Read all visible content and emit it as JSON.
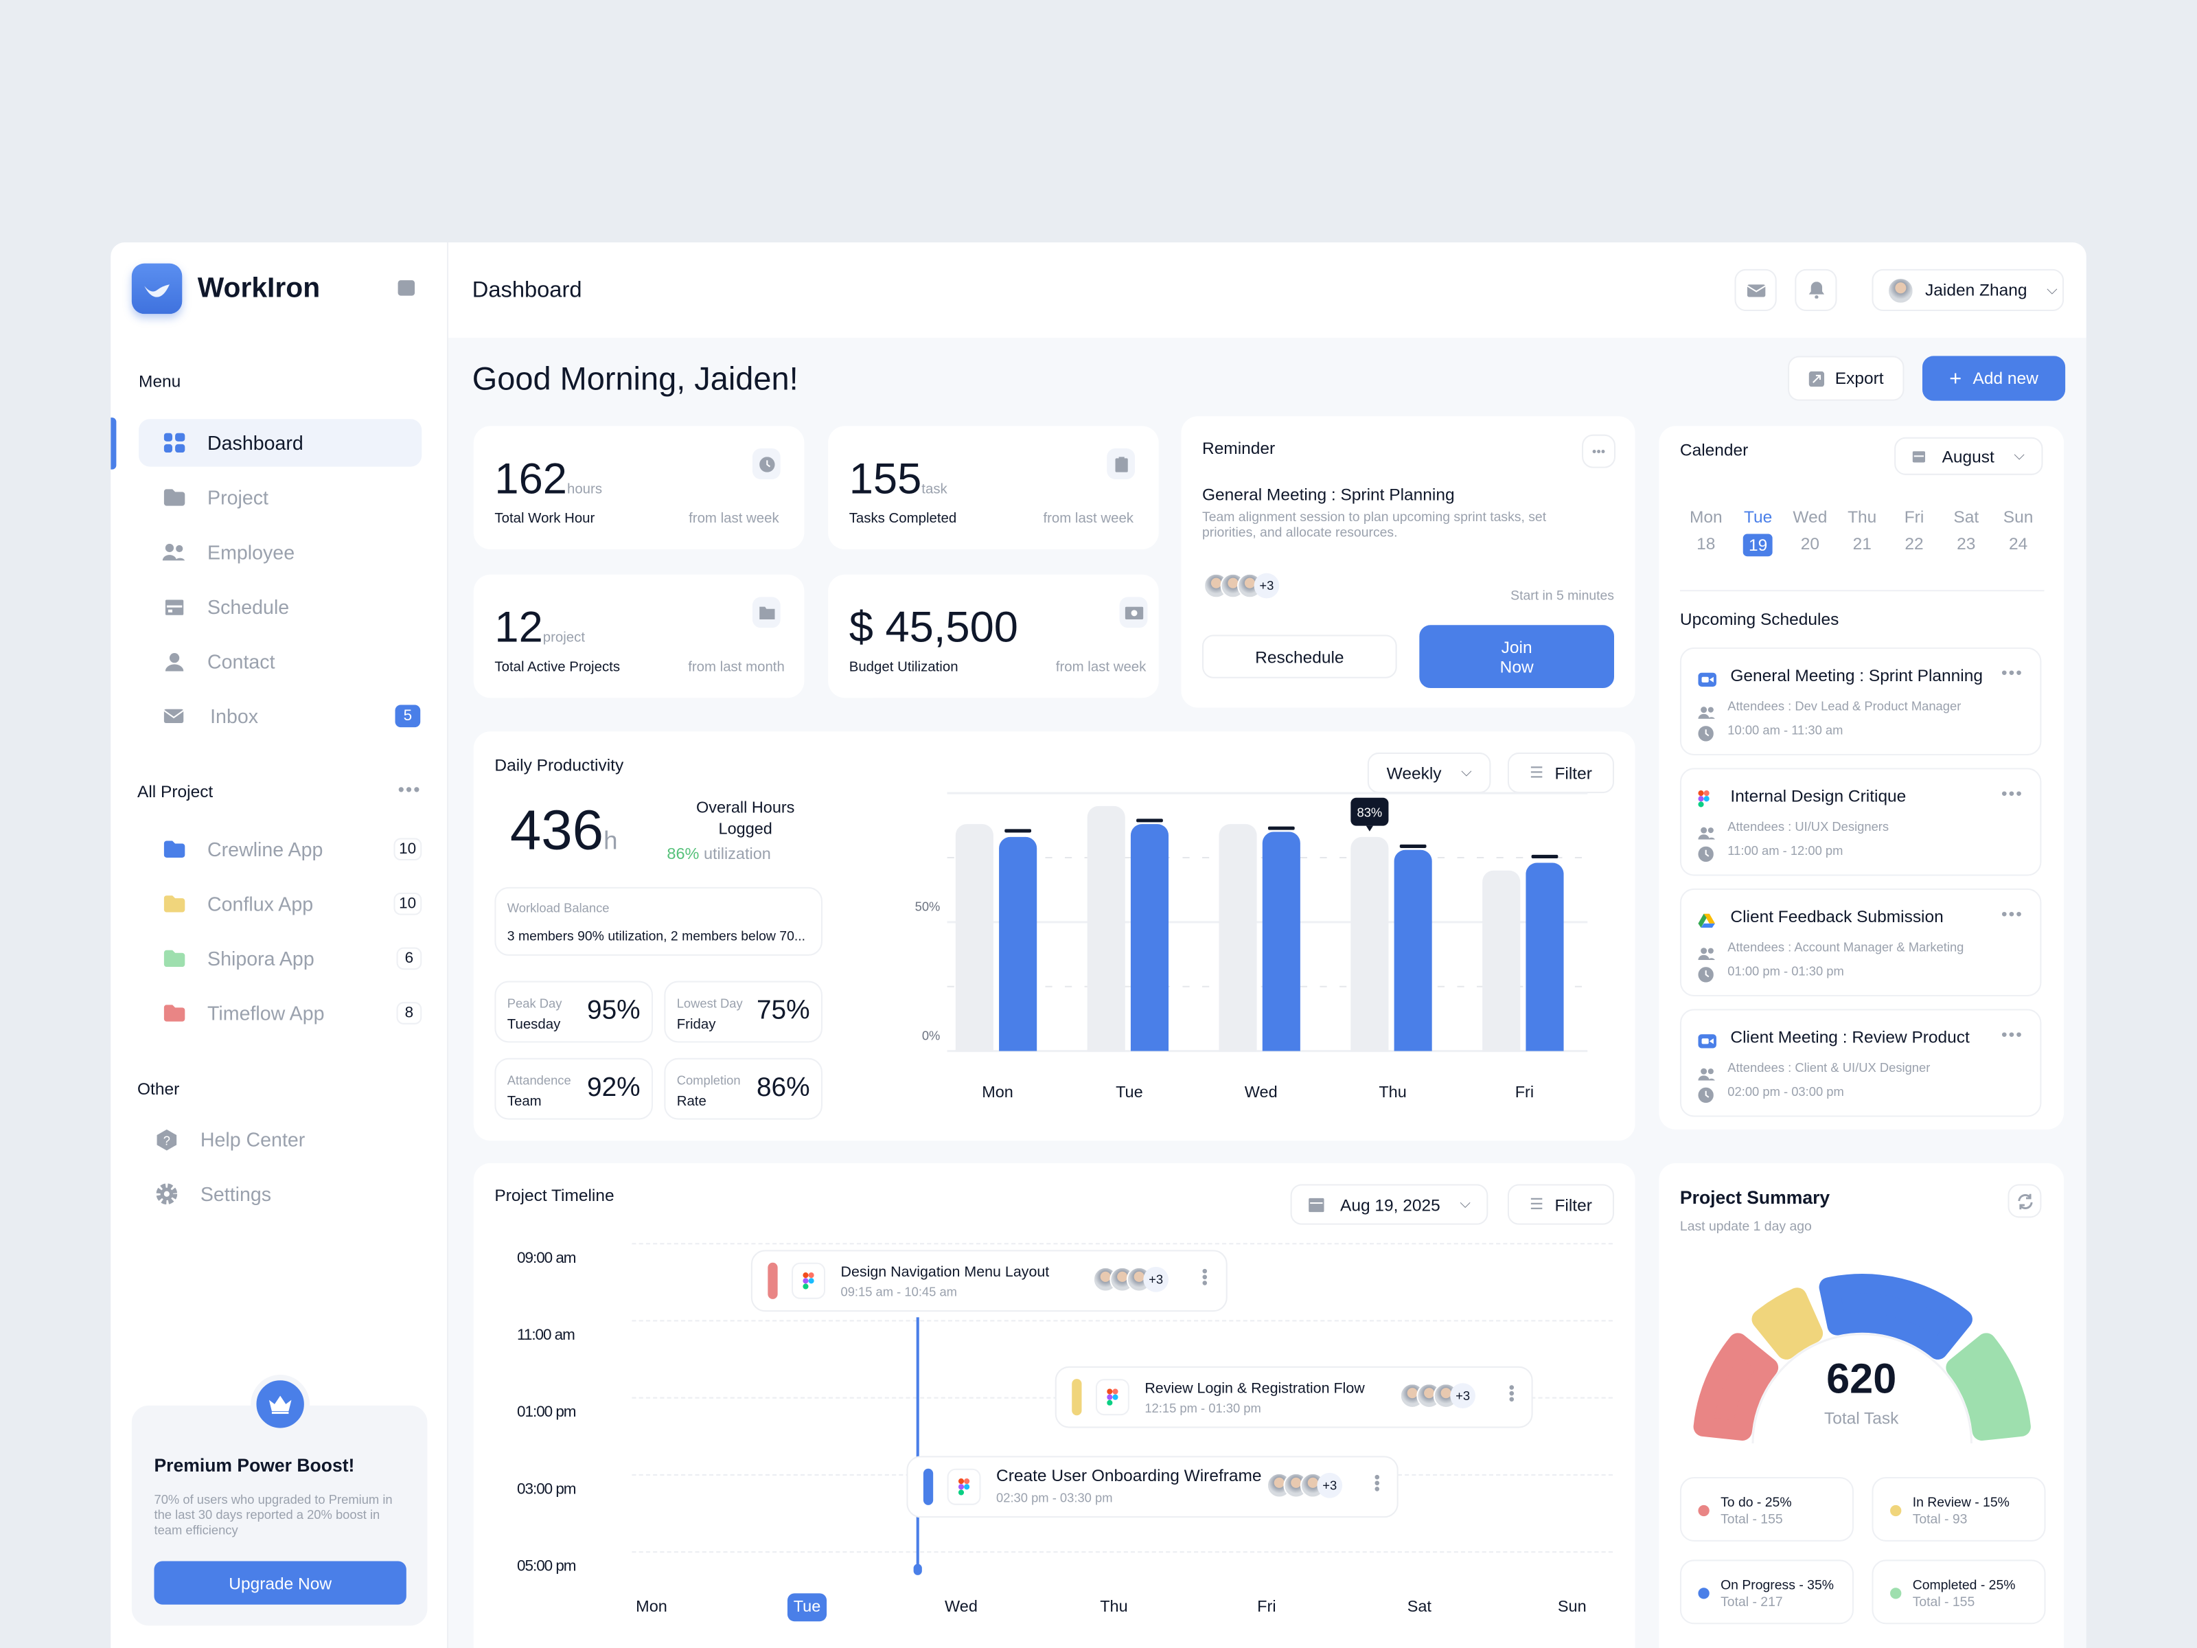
{
  "app": {
    "name": "WorkIron",
    "header_title": "Dashboard",
    "user_name": "Jaiden Zhang"
  },
  "sidebar": {
    "menu_label": "Menu",
    "items": [
      {
        "label": "Dashboard",
        "icon": "grid-icon",
        "active": true
      },
      {
        "label": "Project",
        "icon": "folder-icon"
      },
      {
        "label": "Employee",
        "icon": "users-icon"
      },
      {
        "label": "Schedule",
        "icon": "calendar-icon"
      },
      {
        "label": "Contact",
        "icon": "user-icon"
      },
      {
        "label": "Inbox",
        "icon": "mail-icon",
        "badge": "5"
      }
    ],
    "projects_label": "All Project",
    "projects": [
      {
        "label": "Crewline App",
        "count": "10",
        "color": "#4a7fe8"
      },
      {
        "label": "Conflux App",
        "count": "10",
        "color": "#f0d57c"
      },
      {
        "label": "Shipora App",
        "count": "6",
        "color": "#9edfae"
      },
      {
        "label": "Timeflow App",
        "count": "8",
        "color": "#e98585"
      }
    ],
    "other_label": "Other",
    "other": [
      {
        "label": "Help Center",
        "icon": "help-icon"
      },
      {
        "label": "Settings",
        "icon": "gear-icon"
      }
    ],
    "promo": {
      "title": "Premium Power Boost!",
      "text": "70% of users who upgraded to Premium in the last 30 days reported a 20% boost in team efficiency",
      "button": "Upgrade Now"
    }
  },
  "greeting": "Good Morning, Jaiden!",
  "actions": {
    "export": "Export",
    "add_new": "Add new"
  },
  "stats": [
    {
      "value": "162",
      "unit": "hours",
      "label": "Total Work Hour",
      "sub": "from last week",
      "icon": "clock-icon"
    },
    {
      "value": "155",
      "unit": "task",
      "label": "Tasks Completed",
      "sub": "from last week",
      "icon": "clipboard-icon"
    },
    {
      "value": "12",
      "unit": "project",
      "label": "Total Active Projects",
      "sub": "from last month",
      "icon": "folder-icon"
    },
    {
      "value": "$ 45,500",
      "unit": "",
      "label": "Budget Utilization",
      "sub": "from last week",
      "icon": "money-icon"
    }
  ],
  "reminder": {
    "title": "Reminder",
    "event": "General Meeting : Sprint Planning",
    "desc": "Team alignment session to plan upcoming sprint tasks, set priorities, and allocate resources.",
    "more": "+3",
    "start": "Start in 5 minutes",
    "reschedule": "Reschedule",
    "join": "Join Now"
  },
  "calendar": {
    "title": "Calender",
    "month": "August",
    "days": [
      {
        "d": "Mon",
        "n": "18"
      },
      {
        "d": "Tue",
        "n": "19",
        "active": true
      },
      {
        "d": "Wed",
        "n": "20"
      },
      {
        "d": "Thu",
        "n": "21"
      },
      {
        "d": "Fri",
        "n": "22"
      },
      {
        "d": "Sat",
        "n": "23"
      },
      {
        "d": "Sun",
        "n": "24"
      }
    ],
    "upcoming_title": "Upcoming Schedules",
    "schedules": [
      {
        "title": "General Meeting : Sprint Planning",
        "attendees": "Attendees : Dev Lead & Product Manager",
        "time": "10:00 am - 11:30 am",
        "icon": "zoom-icon"
      },
      {
        "title": "Internal Design Critique",
        "attendees": "Attendees : UI/UX Designers",
        "time": "11:00 am - 12:00 pm",
        "icon": "figma-icon"
      },
      {
        "title": "Client Feedback Submission",
        "attendees": "Attendees : Account Manager & Marketing",
        "time": "01:00 pm - 01:30 pm",
        "icon": "drive-icon"
      },
      {
        "title": "Client Meeting : Review Product",
        "attendees": "Attendees : Client & UI/UX Designer",
        "time": "02:00 pm - 03:00 pm",
        "icon": "zoom-icon"
      }
    ]
  },
  "productivity": {
    "title": "Daily Productivity",
    "period": "Weekly",
    "filter": "Filter",
    "total": "436",
    "total_unit": "h",
    "overall_label": "Overall Hours Logged",
    "util_pct": "86%",
    "util_label": "utilization",
    "workload_label": "Workload Balance",
    "workload_text": "3 members 90% utilization, 2 members below 70...",
    "metrics": [
      {
        "a": "Peak Day",
        "b": "Tuesday",
        "v": "95%"
      },
      {
        "a": "Lowest Day",
        "b": "Friday",
        "v": "75%"
      },
      {
        "a": "Attandence",
        "b": "Team",
        "v": "92%"
      },
      {
        "a": "Completion",
        "b": "Rate",
        "v": "86%"
      }
    ]
  },
  "chart_data": {
    "type": "bar",
    "categories": [
      "Mon",
      "Tue",
      "Wed",
      "Thu",
      "Fri"
    ],
    "ylim": [
      0,
      100
    ],
    "yticks": [
      "0%",
      "50%",
      "100%"
    ],
    "grid": true,
    "series": [
      {
        "values": [
          88,
          95,
          88,
          83,
          70
        ],
        "color": "#eceef2"
      },
      {
        "values": [
          83,
          88,
          85,
          78,
          73
        ],
        "color": "#4a7fe8"
      }
    ],
    "markers": [
      85,
      89,
      86,
      79,
      75
    ],
    "tooltip": {
      "category": "Thu",
      "text": "83%"
    }
  },
  "timeline": {
    "title": "Project Timeline",
    "date": "Aug 19, 2025",
    "filter": "Filter",
    "times": [
      "09:00 am",
      "11:00 am",
      "01:00 pm",
      "03:00 pm",
      "05:00 pm"
    ],
    "days": [
      "Mon",
      "Tue",
      "Wed",
      "Thu",
      "Fri",
      "Sat",
      "Sun"
    ],
    "active_day": "Tue",
    "events": [
      {
        "name": "Design Navigation Menu Layout",
        "time": "09:15 am - 10:45 am",
        "color": "#e98585",
        "more": "+3"
      },
      {
        "name": "Review Login & Registration Flow",
        "time": "12:15 pm - 01:30 pm",
        "color": "#f0d57c",
        "more": "+3"
      },
      {
        "name": "Create User Onboarding Wireframe",
        "time": "02:30 pm - 03:30 pm",
        "color": "#4a7fe8",
        "more": "+3"
      }
    ]
  },
  "summary": {
    "title": "Project Summary",
    "updated": "Last update 1 day ago",
    "total": "620",
    "total_label": "Total Task",
    "segments": [
      {
        "label": "To do - 25%",
        "total": "Total - 155",
        "pct": 25,
        "color": "#e98585"
      },
      {
        "label": "In Review - 15%",
        "total": "Total - 93",
        "pct": 15,
        "color": "#f0d57c"
      },
      {
        "label": "On Progress - 35%",
        "total": "Total - 217",
        "pct": 35,
        "color": "#4a7fe8"
      },
      {
        "label": "Completed - 25%",
        "total": "Total - 155",
        "pct": 25,
        "color": "#9edfae"
      }
    ]
  }
}
